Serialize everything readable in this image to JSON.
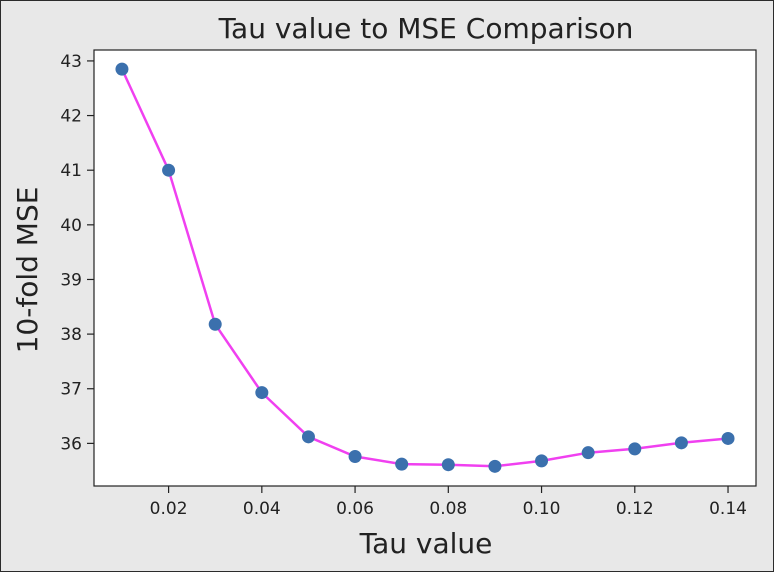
{
  "chart_data": {
    "type": "line",
    "title": "Tau value to MSE Comparison",
    "xlabel": "Tau value",
    "ylabel": "10-fold MSE",
    "x": [
      0.01,
      0.02,
      0.03,
      0.04,
      0.05,
      0.06,
      0.07,
      0.08,
      0.09,
      0.1,
      0.11,
      0.12,
      0.13,
      0.14
    ],
    "series": [
      {
        "values": [
          42.85,
          41.0,
          38.18,
          36.93,
          36.12,
          35.76,
          35.62,
          35.61,
          35.58,
          35.68,
          35.83,
          35.9,
          36.01,
          36.09
        ],
        "line_color": "#f040f0",
        "marker_color": "#3b70ad"
      }
    ],
    "xlim": [
      0.004,
      0.146
    ],
    "ylim": [
      35.22,
      43.2
    ],
    "xticks": [
      0.02,
      0.04,
      0.06,
      0.08,
      0.1,
      0.12,
      0.14
    ],
    "xtick_labels": [
      "0.02",
      "0.04",
      "0.06",
      "0.08",
      "0.10",
      "0.12",
      "0.14"
    ],
    "yticks": [
      36,
      37,
      38,
      39,
      40,
      41,
      42,
      43
    ],
    "ytick_labels": [
      "36",
      "37",
      "38",
      "39",
      "40",
      "41",
      "42",
      "43"
    ],
    "grid": false
  }
}
